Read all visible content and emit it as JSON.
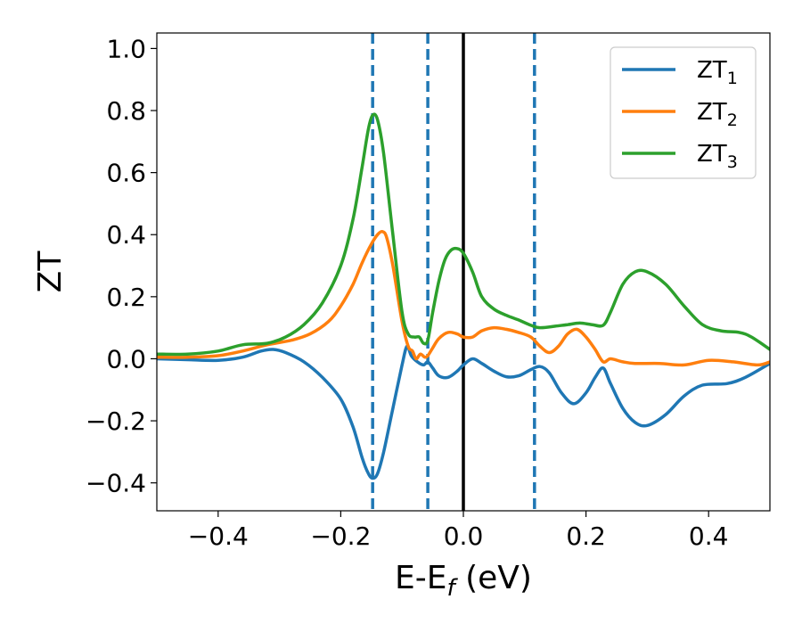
{
  "chart_data": {
    "type": "line",
    "xlabel": "E-E_f (eV)",
    "ylabel": "ZT",
    "xlim": [
      -0.5,
      0.5
    ],
    "ylim": [
      -0.49,
      1.05
    ],
    "xticks": [
      -0.4,
      -0.2,
      0.0,
      0.2,
      0.4
    ],
    "xtick_labels": [
      "−0.4",
      "−0.2",
      "0.0",
      "0.2",
      "0.4"
    ],
    "yticks": [
      -0.4,
      -0.2,
      0.0,
      0.2,
      0.4,
      0.6,
      0.8,
      1.0
    ],
    "ytick_labels": [
      "−0.4",
      "−0.2",
      "0.0",
      "0.2",
      "0.4",
      "0.6",
      "0.8",
      "1.0"
    ],
    "legend_position": "top-right",
    "grid": false,
    "vlines": [
      {
        "x": -0.148,
        "style": "dashed",
        "color": "#1f77b4"
      },
      {
        "x": -0.058,
        "style": "dashed",
        "color": "#1f77b4"
      },
      {
        "x": 0.0,
        "style": "solid",
        "color": "#000000"
      },
      {
        "x": 0.116,
        "style": "dashed",
        "color": "#1f77b4"
      }
    ],
    "series": [
      {
        "name": "ZT1",
        "label_main": "ZT",
        "label_sub": "1",
        "color": "#1f77b4",
        "points": [
          [
            -0.5,
            0.0
          ],
          [
            -0.45,
            -0.003
          ],
          [
            -0.4,
            -0.005
          ],
          [
            -0.36,
            0.005
          ],
          [
            -0.33,
            0.025
          ],
          [
            -0.31,
            0.03
          ],
          [
            -0.29,
            0.02
          ],
          [
            -0.26,
            -0.01
          ],
          [
            -0.23,
            -0.06
          ],
          [
            -0.2,
            -0.13
          ],
          [
            -0.18,
            -0.22
          ],
          [
            -0.165,
            -0.32
          ],
          [
            -0.155,
            -0.37
          ],
          [
            -0.148,
            -0.385
          ],
          [
            -0.14,
            -0.37
          ],
          [
            -0.13,
            -0.3
          ],
          [
            -0.115,
            -0.16
          ],
          [
            -0.1,
            -0.02
          ],
          [
            -0.092,
            0.04
          ],
          [
            -0.085,
            0.01
          ],
          [
            -0.075,
            -0.01
          ],
          [
            -0.065,
            -0.02
          ],
          [
            -0.058,
            -0.01
          ],
          [
            -0.05,
            -0.03
          ],
          [
            -0.04,
            -0.055
          ],
          [
            -0.025,
            -0.06
          ],
          [
            -0.01,
            -0.04
          ],
          [
            0.0,
            -0.02
          ],
          [
            0.015,
            0.0
          ],
          [
            0.03,
            -0.015
          ],
          [
            0.05,
            -0.04
          ],
          [
            0.07,
            -0.058
          ],
          [
            0.09,
            -0.055
          ],
          [
            0.11,
            -0.035
          ],
          [
            0.125,
            -0.025
          ],
          [
            0.14,
            -0.045
          ],
          [
            0.16,
            -0.11
          ],
          [
            0.18,
            -0.145
          ],
          [
            0.2,
            -0.11
          ],
          [
            0.215,
            -0.06
          ],
          [
            0.228,
            -0.03
          ],
          [
            0.24,
            -0.08
          ],
          [
            0.26,
            -0.16
          ],
          [
            0.28,
            -0.205
          ],
          [
            0.3,
            -0.215
          ],
          [
            0.33,
            -0.18
          ],
          [
            0.36,
            -0.12
          ],
          [
            0.39,
            -0.085
          ],
          [
            0.43,
            -0.08
          ],
          [
            0.46,
            -0.06
          ],
          [
            0.5,
            -0.015
          ]
        ]
      },
      {
        "name": "ZT2",
        "label_main": "ZT",
        "label_sub": "2",
        "color": "#ff7f0e",
        "points": [
          [
            -0.5,
            0.005
          ],
          [
            -0.45,
            0.005
          ],
          [
            -0.4,
            0.01
          ],
          [
            -0.36,
            0.025
          ],
          [
            -0.32,
            0.045
          ],
          [
            -0.28,
            0.06
          ],
          [
            -0.25,
            0.08
          ],
          [
            -0.22,
            0.12
          ],
          [
            -0.2,
            0.17
          ],
          [
            -0.18,
            0.24
          ],
          [
            -0.165,
            0.31
          ],
          [
            -0.15,
            0.37
          ],
          [
            -0.14,
            0.4
          ],
          [
            -0.132,
            0.41
          ],
          [
            -0.125,
            0.39
          ],
          [
            -0.115,
            0.3
          ],
          [
            -0.1,
            0.12
          ],
          [
            -0.09,
            0.04
          ],
          [
            -0.083,
            0.025
          ],
          [
            -0.077,
            0.0
          ],
          [
            -0.07,
            0.015
          ],
          [
            -0.063,
            0.005
          ],
          [
            -0.058,
            0.01
          ],
          [
            -0.05,
            0.035
          ],
          [
            -0.04,
            0.065
          ],
          [
            -0.025,
            0.085
          ],
          [
            -0.01,
            0.08
          ],
          [
            0.0,
            0.07
          ],
          [
            0.015,
            0.07
          ],
          [
            0.03,
            0.09
          ],
          [
            0.05,
            0.1
          ],
          [
            0.07,
            0.095
          ],
          [
            0.09,
            0.085
          ],
          [
            0.11,
            0.07
          ],
          [
            0.125,
            0.04
          ],
          [
            0.14,
            0.02
          ],
          [
            0.155,
            0.04
          ],
          [
            0.17,
            0.08
          ],
          [
            0.185,
            0.095
          ],
          [
            0.2,
            0.07
          ],
          [
            0.215,
            0.03
          ],
          [
            0.228,
            -0.01
          ],
          [
            0.24,
            0.0
          ],
          [
            0.26,
            -0.01
          ],
          [
            0.28,
            -0.015
          ],
          [
            0.32,
            -0.015
          ],
          [
            0.36,
            -0.02
          ],
          [
            0.4,
            -0.005
          ],
          [
            0.44,
            -0.01
          ],
          [
            0.48,
            -0.02
          ],
          [
            0.5,
            -0.01
          ]
        ]
      },
      {
        "name": "ZT3",
        "label_main": "ZT",
        "label_sub": "3",
        "color": "#2ca02c",
        "points": [
          [
            -0.5,
            0.015
          ],
          [
            -0.45,
            0.015
          ],
          [
            -0.4,
            0.025
          ],
          [
            -0.36,
            0.045
          ],
          [
            -0.32,
            0.05
          ],
          [
            -0.29,
            0.07
          ],
          [
            -0.26,
            0.11
          ],
          [
            -0.23,
            0.18
          ],
          [
            -0.2,
            0.3
          ],
          [
            -0.18,
            0.45
          ],
          [
            -0.165,
            0.62
          ],
          [
            -0.155,
            0.74
          ],
          [
            -0.148,
            0.785
          ],
          [
            -0.14,
            0.77
          ],
          [
            -0.13,
            0.66
          ],
          [
            -0.115,
            0.4
          ],
          [
            -0.1,
            0.15
          ],
          [
            -0.09,
            0.08
          ],
          [
            -0.08,
            0.07
          ],
          [
            -0.072,
            0.07
          ],
          [
            -0.065,
            0.05
          ],
          [
            -0.058,
            0.06
          ],
          [
            -0.05,
            0.15
          ],
          [
            -0.04,
            0.25
          ],
          [
            -0.03,
            0.32
          ],
          [
            -0.02,
            0.35
          ],
          [
            -0.01,
            0.355
          ],
          [
            0.0,
            0.34
          ],
          [
            0.015,
            0.28
          ],
          [
            0.03,
            0.2
          ],
          [
            0.05,
            0.16
          ],
          [
            0.07,
            0.14
          ],
          [
            0.09,
            0.125
          ],
          [
            0.11,
            0.108
          ],
          [
            0.125,
            0.1
          ],
          [
            0.15,
            0.105
          ],
          [
            0.17,
            0.11
          ],
          [
            0.19,
            0.115
          ],
          [
            0.21,
            0.11
          ],
          [
            0.228,
            0.108
          ],
          [
            0.24,
            0.15
          ],
          [
            0.26,
            0.24
          ],
          [
            0.28,
            0.28
          ],
          [
            0.3,
            0.28
          ],
          [
            0.33,
            0.24
          ],
          [
            0.36,
            0.17
          ],
          [
            0.39,
            0.11
          ],
          [
            0.42,
            0.09
          ],
          [
            0.45,
            0.085
          ],
          [
            0.47,
            0.07
          ],
          [
            0.5,
            0.03
          ]
        ]
      }
    ]
  }
}
